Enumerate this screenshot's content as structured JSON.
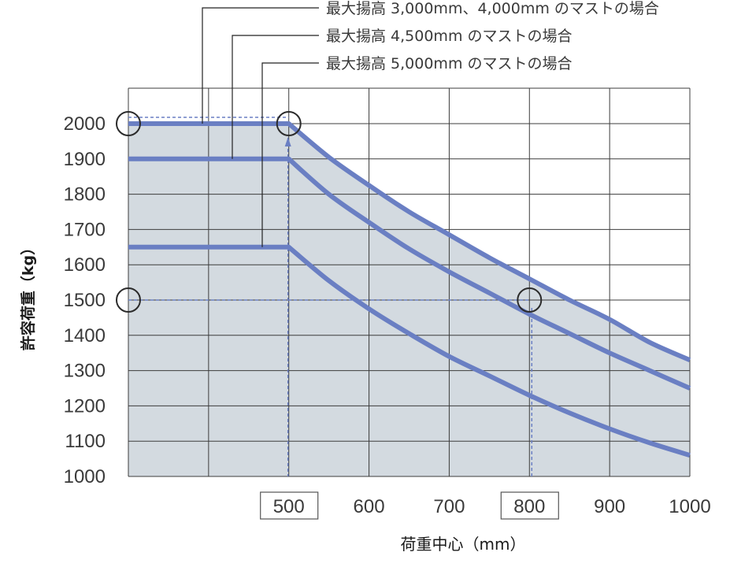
{
  "chart_data": {
    "type": "line",
    "title": "",
    "xlabel": "荷重中心（mm）",
    "ylabel": "許容荷重（kg）",
    "xlim": [
      300,
      1000
    ],
    "ylim": [
      1000,
      2000
    ],
    "x_ticks": [
      "500",
      "600",
      "700",
      "800",
      "900",
      "1000"
    ],
    "y_ticks": [
      "2000",
      "1900",
      "1800",
      "1700",
      "1600",
      "1500",
      "1400",
      "1300",
      "1200",
      "1100",
      "1000"
    ],
    "highlighted_x_ticks": [
      "500",
      "800"
    ],
    "grid": true,
    "series": [
      {
        "name": "最大揚高 3,000mm、4,000mm のマストの場合",
        "x": [
          300,
          500,
          550,
          600,
          650,
          700,
          750,
          800,
          850,
          900,
          950,
          1000
        ],
        "y": [
          2000,
          2000,
          1905,
          1825,
          1750,
          1685,
          1620,
          1560,
          1500,
          1445,
          1380,
          1330
        ]
      },
      {
        "name": "最大揚高 4,500mm のマストの場合",
        "x": [
          300,
          500,
          550,
          600,
          650,
          700,
          750,
          800,
          850,
          900,
          950,
          1000
        ],
        "y": [
          1900,
          1900,
          1800,
          1720,
          1645,
          1580,
          1520,
          1460,
          1405,
          1350,
          1300,
          1250
        ]
      },
      {
        "name": "最大揚高 5,000mm のマストの場合",
        "x": [
          300,
          500,
          550,
          600,
          650,
          700,
          750,
          800,
          850,
          900,
          950,
          1000
        ],
        "y": [
          1650,
          1650,
          1555,
          1475,
          1405,
          1340,
          1285,
          1230,
          1180,
          1135,
          1095,
          1060
        ]
      }
    ],
    "annotations": [
      {
        "x": 300,
        "y": 2000
      },
      {
        "x": 500,
        "y": 2000
      },
      {
        "x": 300,
        "y": 1500
      },
      {
        "x": 800,
        "y": 1500
      }
    ],
    "colors": {
      "line": "#6a7fc3",
      "fill": "#d3dae0",
      "grid": "#3c3c3c",
      "guide": "#6a7fc3",
      "text": "#3a3a3a"
    }
  }
}
